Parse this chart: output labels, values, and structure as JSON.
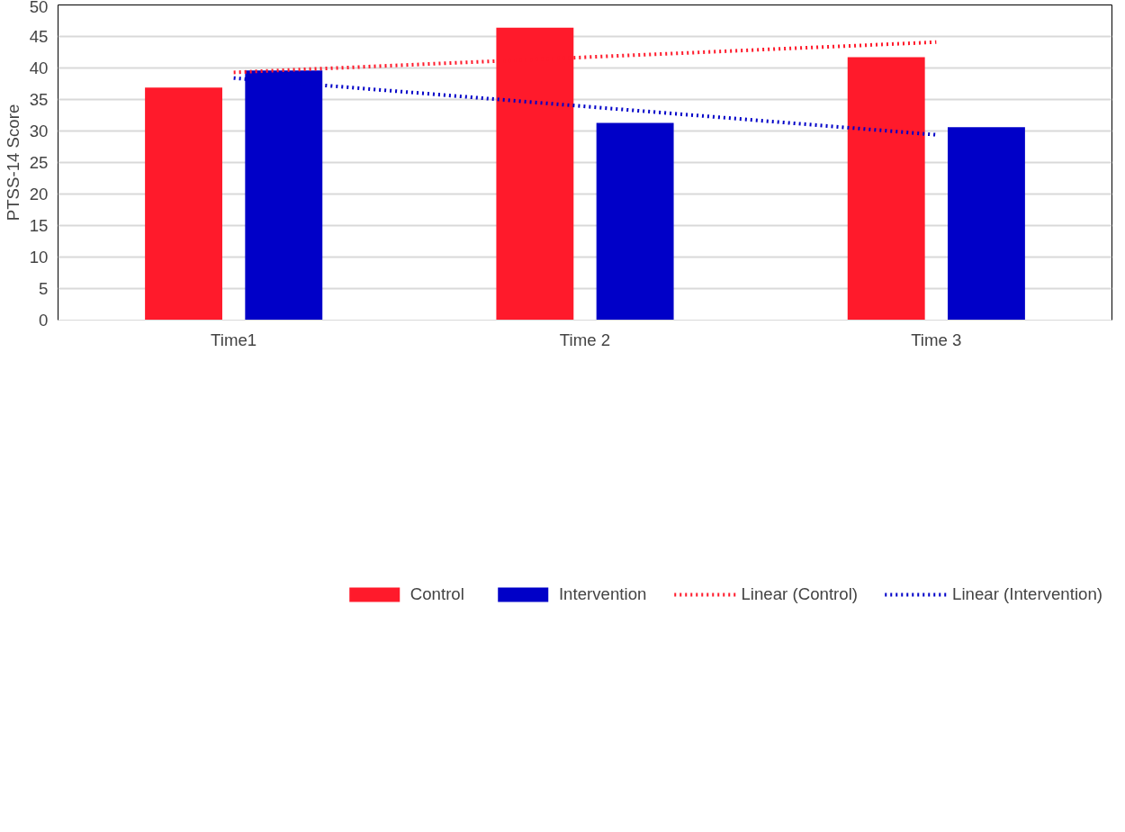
{
  "chart_data": {
    "type": "bar",
    "ylabel": "PTSS-14 Score",
    "categories": [
      "Time1",
      "Time 2",
      "Time 3"
    ],
    "series": [
      {
        "name": "Control",
        "color": "#ff1a2b",
        "values": [
          36.9,
          46.4,
          41.7
        ]
      },
      {
        "name": "Intervention",
        "color": "#0000c8",
        "values": [
          39.6,
          31.3,
          30.6
        ]
      },
      {
        "name": "Linear (Control)",
        "type": "line",
        "line_style": "dotted",
        "color": "#ff1a2b",
        "values": [
          39.3,
          41.7,
          44.1
        ]
      },
      {
        "name": "Linear (Intervention)",
        "type": "line",
        "line_style": "dotted",
        "color": "#0000c8",
        "values": [
          38.4,
          33.9,
          29.4
        ]
      }
    ],
    "ylim": [
      0,
      50
    ],
    "yticks": [
      0,
      5,
      10,
      15,
      20,
      25,
      30,
      35,
      40,
      45,
      50
    ],
    "grid": "y",
    "legend": "bottom"
  }
}
